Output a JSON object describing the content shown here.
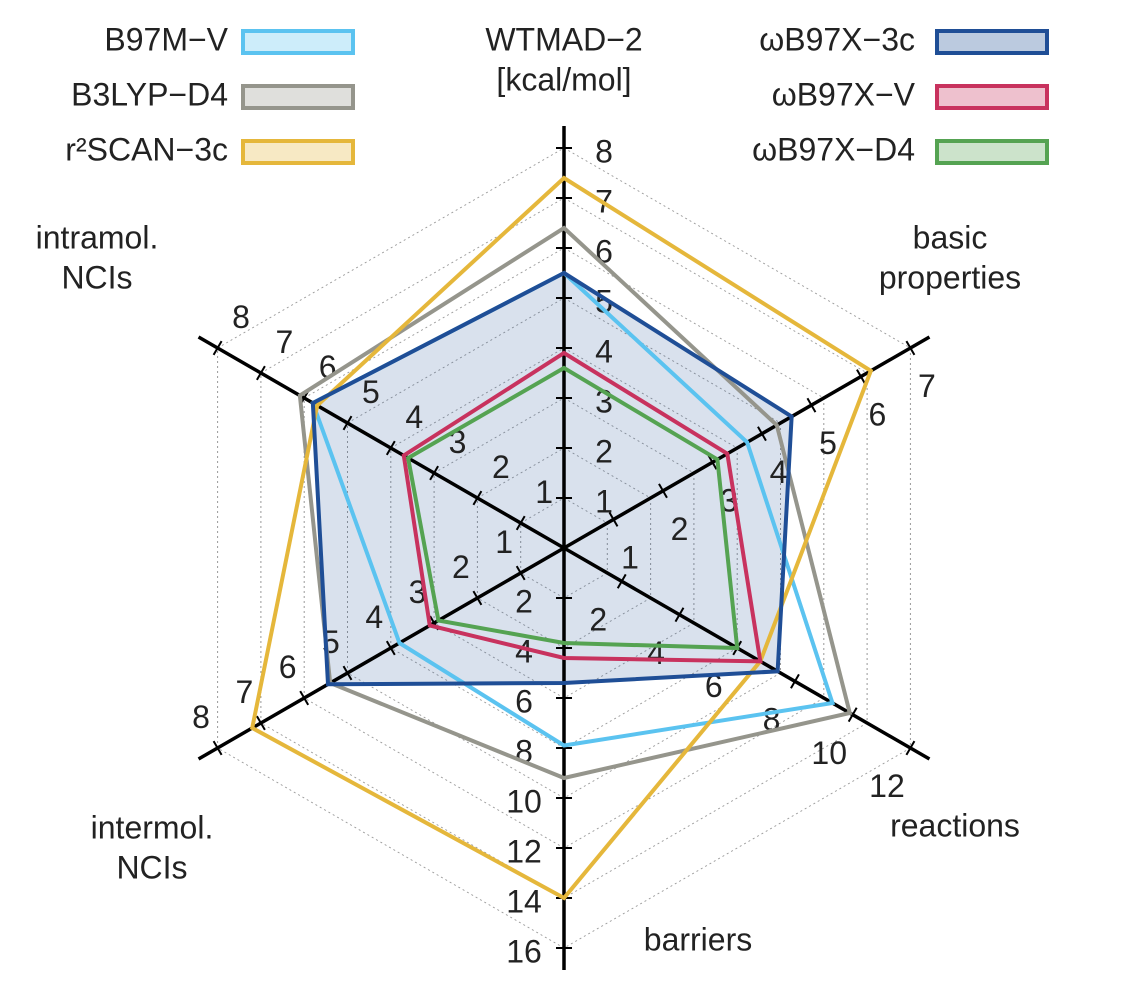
{
  "chart_data": {
    "type": "radar",
    "axes": [
      {
        "label": [
          "WTMAD−2",
          "[kcal/mol]"
        ],
        "lim": [
          0,
          8
        ],
        "ticks": [
          1,
          2,
          3,
          4,
          5,
          6,
          7,
          8
        ]
      },
      {
        "label": [
          "basic",
          "properties"
        ],
        "lim": [
          0,
          7
        ],
        "ticks": [
          1,
          2,
          3,
          4,
          5,
          6,
          7
        ]
      },
      {
        "label": [
          "reactions"
        ],
        "lim": [
          0,
          12
        ],
        "ticks": [
          2,
          4,
          6,
          8,
          10,
          12
        ]
      },
      {
        "label": [
          "barriers"
        ],
        "lim": [
          0,
          16
        ],
        "ticks": [
          2,
          4,
          6,
          8,
          10,
          12,
          14,
          16
        ]
      },
      {
        "label": [
          "intermol.",
          "NCIs"
        ],
        "lim": [
          0,
          8
        ],
        "ticks": [
          1,
          2,
          3,
          4,
          5,
          6,
          7,
          8
        ]
      },
      {
        "label": [
          "intramol.",
          "NCIs"
        ],
        "lim": [
          0,
          8
        ],
        "ticks": [
          1,
          2,
          3,
          4,
          5,
          6,
          7,
          8
        ]
      }
    ],
    "grid": true,
    "series": [
      {
        "name": "B97M−V",
        "color": "#5bc3f0",
        "values": [
          5.5,
          3.7,
          9.3,
          7.9,
          3.8,
          5.8
        ]
      },
      {
        "name": "B3LYP−D4",
        "color": "#95958c",
        "values": [
          6.4,
          4.3,
          9.9,
          9.2,
          5.4,
          6.1
        ]
      },
      {
        "name": "r²SCAN−3c",
        "color": "#e5b73b",
        "values": [
          7.4,
          6.2,
          6.8,
          14,
          7.2,
          5.7
        ]
      },
      {
        "name": "ωB97X−3c",
        "color": "#1f4e96",
        "values": [
          5.5,
          4.6,
          7.4,
          5.4,
          5.45,
          5.8
        ],
        "filled": true
      },
      {
        "name": "ωB97X−V",
        "color": "#c8325e",
        "values": [
          3.9,
          3.3,
          6.8,
          4.4,
          3.1,
          3.7
        ]
      },
      {
        "name": "ωB97X−D4",
        "color": "#55a352",
        "values": [
          3.6,
          3.1,
          6.0,
          3.8,
          2.9,
          3.6
        ]
      }
    ]
  }
}
